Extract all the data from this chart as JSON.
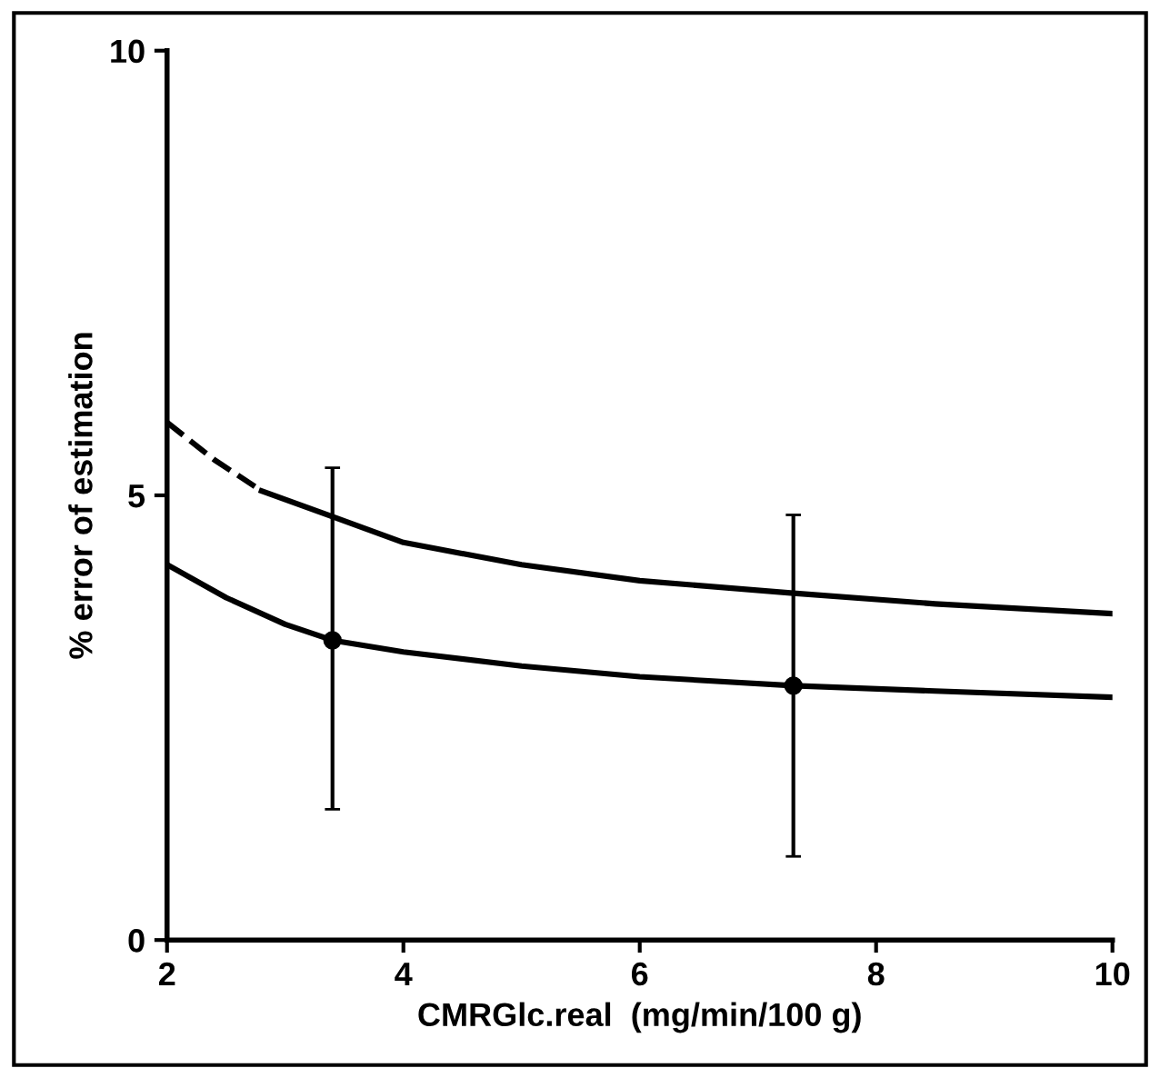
{
  "chart_data": {
    "type": "line",
    "xlabel": "CMRGlc.real  (mg/min/100 g)",
    "ylabel": "% error of estimation",
    "xlim": [
      2,
      10
    ],
    "xticks": [
      2,
      4,
      6,
      8,
      10
    ],
    "ylim": [
      0,
      10
    ],
    "yticks": [
      0,
      5,
      10
    ],
    "grid": false,
    "legend": false,
    "marker": "none",
    "series": [
      {
        "line_style": "dashed",
        "color": "#000000",
        "x": [
          2,
          2.4,
          2.8
        ],
        "values": [
          5.82,
          5.4,
          5.05
        ]
      },
      {
        "line_style": "solid",
        "color": "#000000",
        "x": [
          2.8,
          3.4,
          4,
          5,
          6,
          7.3,
          8.5,
          10
        ],
        "values": [
          5.05,
          4.76,
          4.47,
          4.22,
          4.04,
          3.9,
          3.78,
          3.67
        ]
      },
      {
        "line_style": "solid",
        "color": "#000000",
        "x": [
          2,
          2.5,
          3,
          3.4,
          4,
          5,
          6,
          7.3,
          8.5,
          10
        ],
        "values": [
          4.22,
          3.85,
          3.55,
          3.37,
          3.24,
          3.08,
          2.96,
          2.86,
          2.8,
          2.73
        ]
      },
      {
        "type": "scatter",
        "marker": "circle",
        "color": "#000000",
        "x": [
          3.4,
          7.3
        ],
        "values": [
          3.37,
          2.86
        ],
        "errors": [
          [
            1.47,
            5.31
          ],
          [
            0.94,
            4.78
          ]
        ]
      }
    ]
  }
}
